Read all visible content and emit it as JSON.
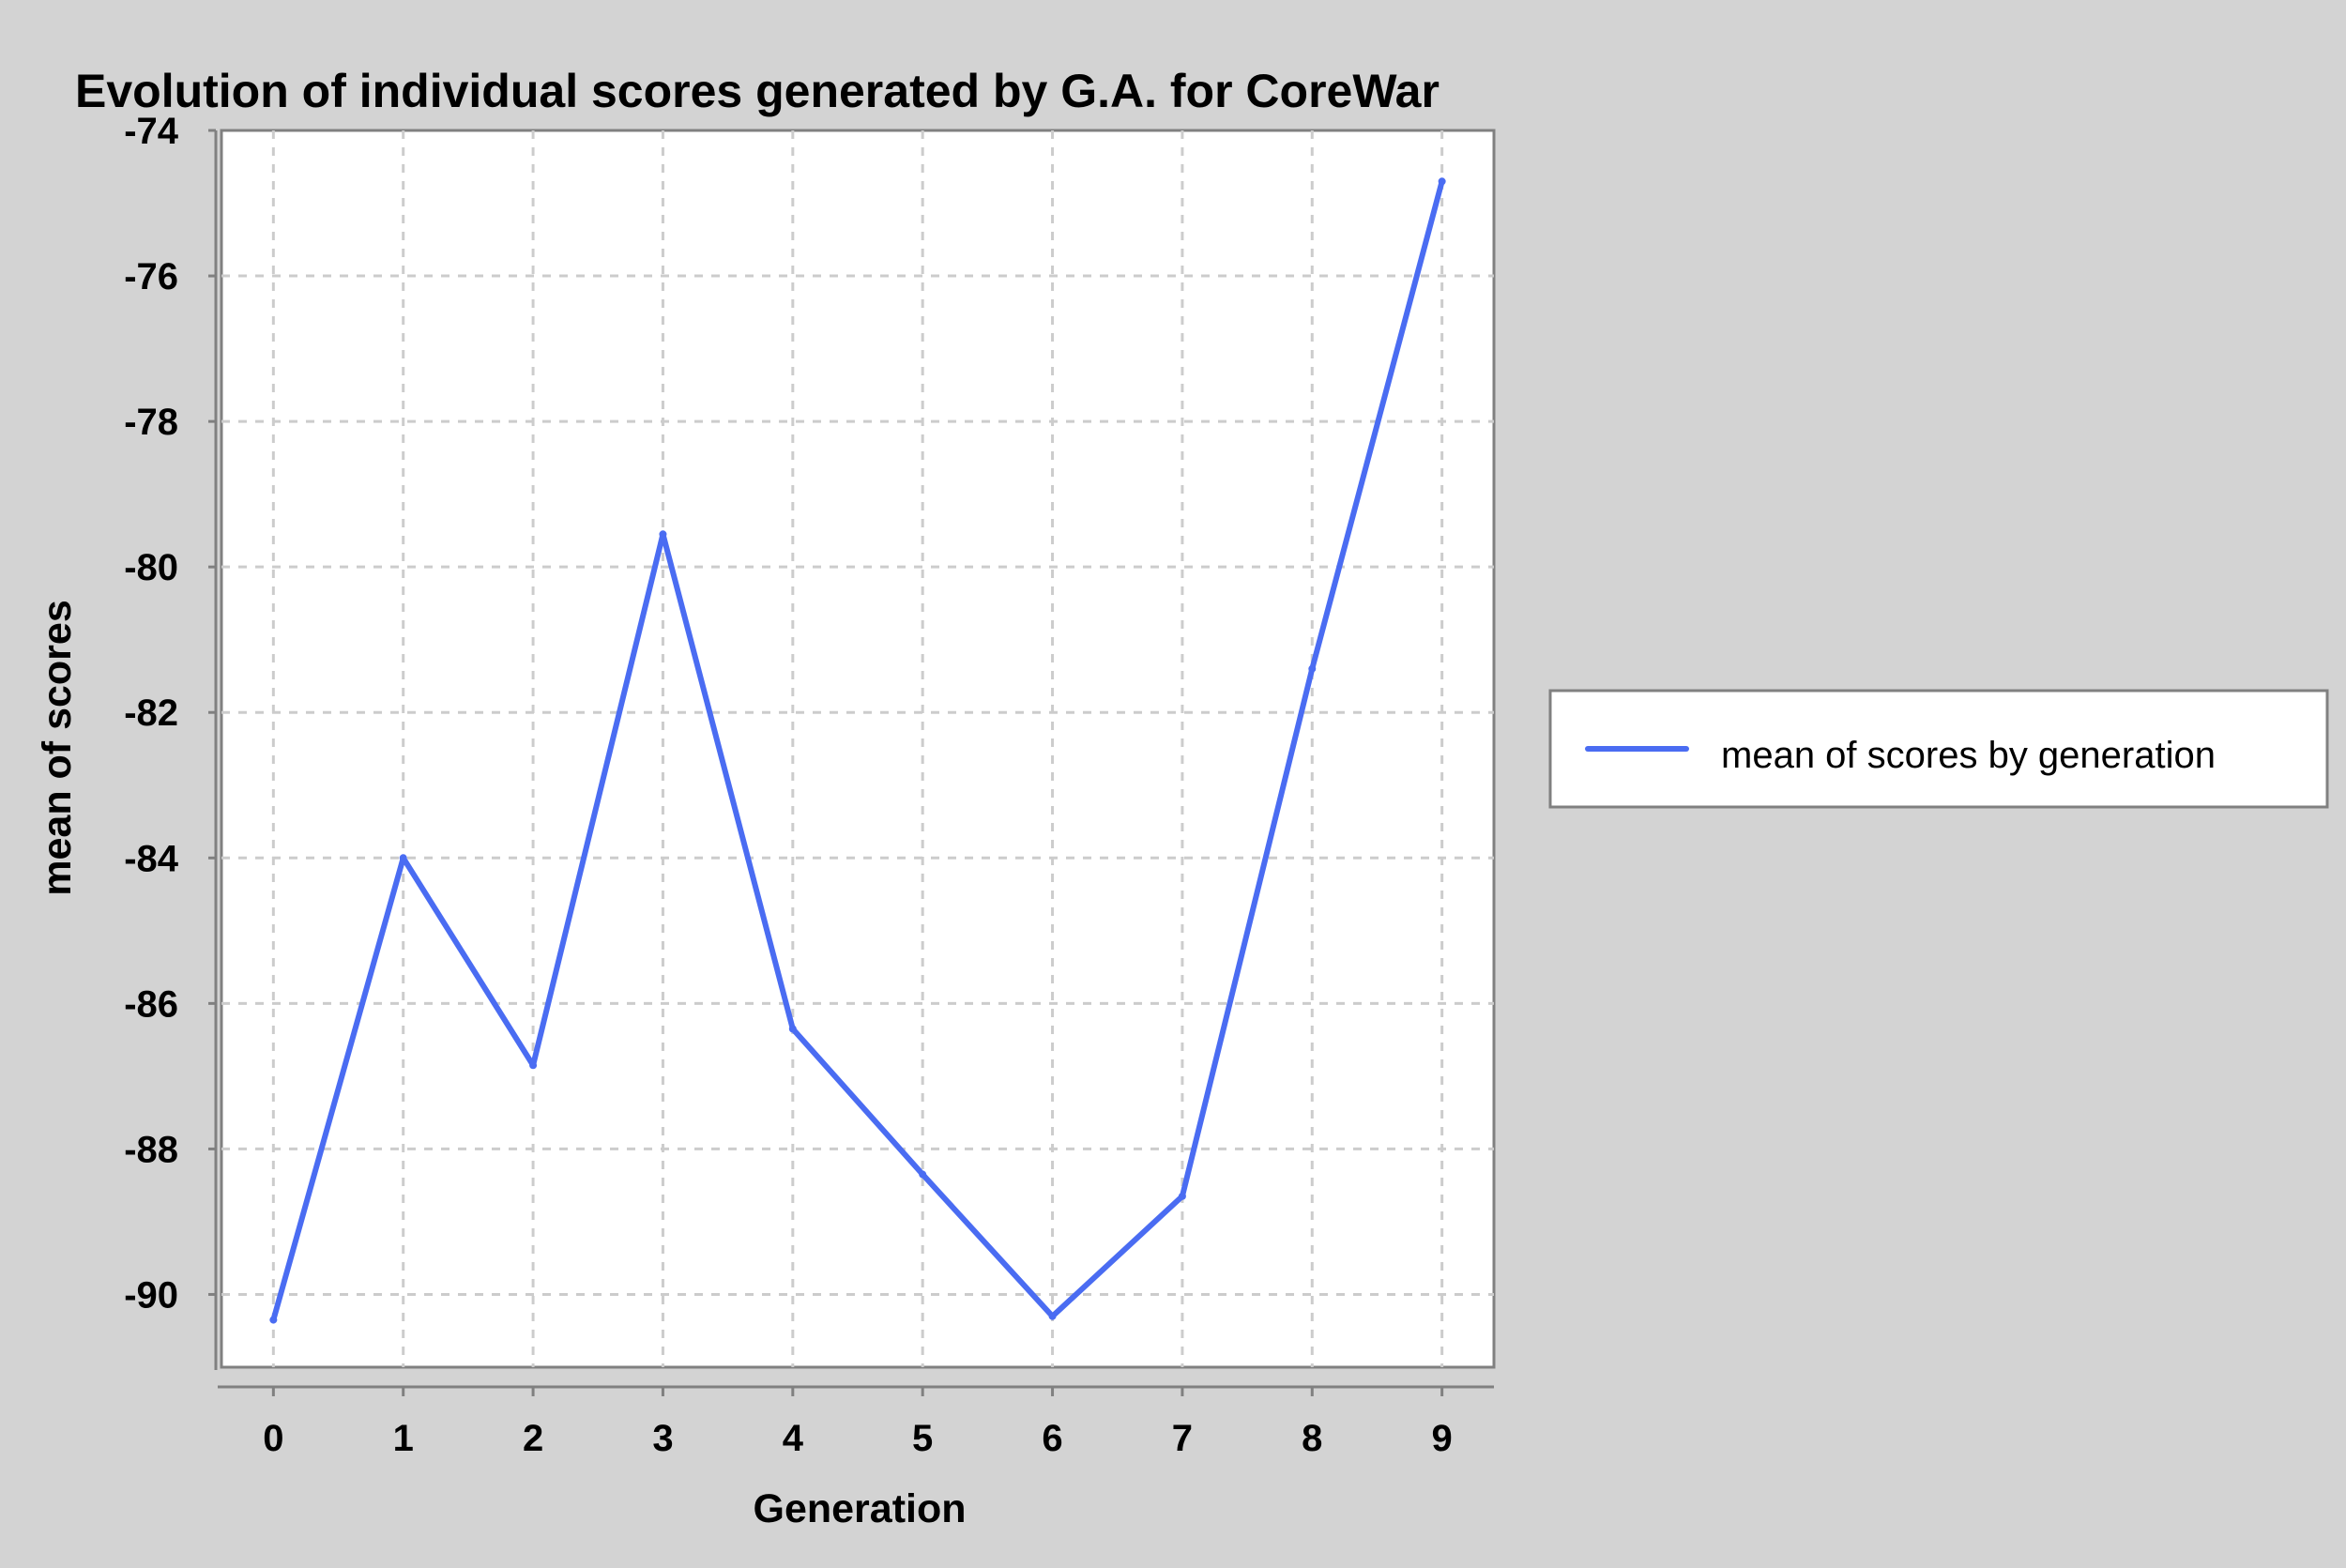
{
  "chart_data": {
    "type": "line",
    "title": "Evolution of individual scores generated by G.A. for CoreWar",
    "xlabel": "Generation",
    "ylabel": "mean of scores",
    "x": [
      0,
      1,
      2,
      3,
      4,
      5,
      6,
      7,
      8,
      9
    ],
    "xlim": [
      -0.4,
      9.4
    ],
    "ylim": [
      -91,
      -74
    ],
    "xticks": [
      0,
      1,
      2,
      3,
      4,
      5,
      6,
      7,
      8,
      9
    ],
    "yticks": [
      -90,
      -88,
      -86,
      -84,
      -82,
      -80,
      -78,
      -76,
      -74
    ],
    "grid": true,
    "legend_position": "right",
    "series": [
      {
        "name": "mean of scores by generation",
        "color": "#4a6cf2",
        "values": [
          -90.35,
          -84.0,
          -86.85,
          -79.55,
          -86.35,
          -88.35,
          -90.3,
          -88.65,
          -81.4,
          -74.7
        ]
      }
    ]
  }
}
